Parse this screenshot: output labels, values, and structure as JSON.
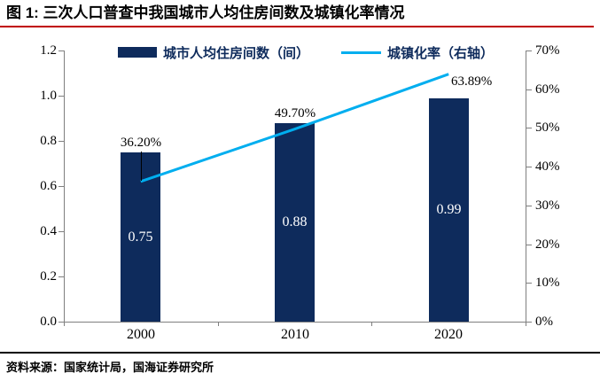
{
  "header": {
    "title": "图 1:  三次人口普查中我国城市人均住房间数及城镇化率情况"
  },
  "legend": {
    "bar_label": "城市人均住房间数（间）",
    "line_label": "城镇化率（右轴）"
  },
  "colors": {
    "bar": "#0e2b5c",
    "line": "#00aeef",
    "title_underline": "#c00000",
    "axis": "#7f7f7f",
    "bar_value_text": "#ffffff",
    "legend_text": "#0e2b5c"
  },
  "chart_data": {
    "type": "bar",
    "categories": [
      "2000",
      "2010",
      "2020"
    ],
    "series": [
      {
        "name": "城市人均住房间数（间）",
        "chart_type": "bar",
        "axis": "left",
        "values": [
          0.75,
          0.88,
          0.99
        ],
        "labels": [
          "0.75",
          "0.88",
          "0.99"
        ]
      },
      {
        "name": "城镇化率（右轴）",
        "chart_type": "line",
        "axis": "right",
        "values": [
          0.362,
          0.497,
          0.6389
        ],
        "labels": [
          "36.20%",
          "49.70%",
          "63.89%"
        ]
      }
    ],
    "left_axis": {
      "min": 0,
      "max": 1.2,
      "step": 0.2,
      "ticks": [
        "0.0",
        "0.2",
        "0.4",
        "0.6",
        "0.8",
        "1.0",
        "1.2"
      ]
    },
    "right_axis": {
      "min": 0,
      "max": 0.7,
      "step": 0.1,
      "ticks": [
        "0%",
        "10%",
        "20%",
        "30%",
        "40%",
        "50%",
        "60%",
        "70%"
      ]
    },
    "grid": false,
    "legend_position": "top-center"
  },
  "footer": {
    "source": "资料来源：国家统计局，国海证券研究所"
  }
}
